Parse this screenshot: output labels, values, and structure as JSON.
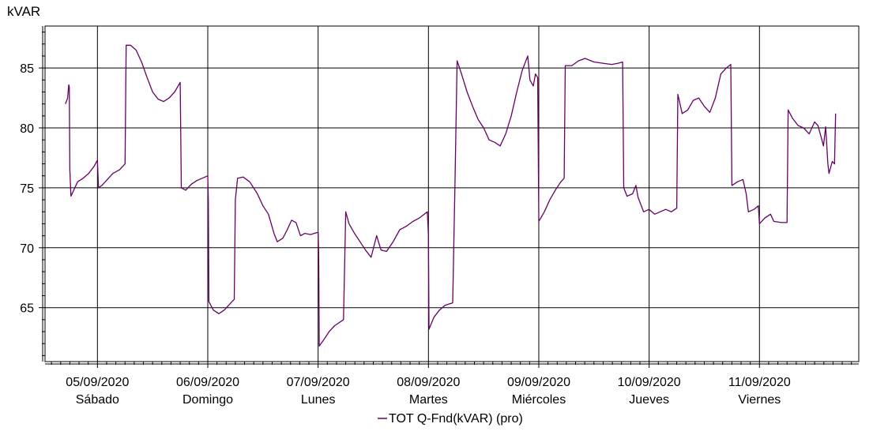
{
  "chart_data": {
    "type": "line",
    "title": "",
    "ylabel": "kVAR",
    "xlabel": "",
    "ylim": [
      60.5,
      88.5
    ],
    "xlim": [
      -0.475,
      6.9
    ],
    "y_ticks": [
      65,
      70,
      75,
      80,
      85
    ],
    "x_ticks": [
      {
        "x": 0,
        "date": "05/09/2020",
        "day": "Sábado"
      },
      {
        "x": 1,
        "date": "06/09/2020",
        "day": "Domingo"
      },
      {
        "x": 2,
        "date": "07/09/2020",
        "day": "Lunes"
      },
      {
        "x": 3,
        "date": "08/09/2020",
        "day": "Martes"
      },
      {
        "x": 4,
        "date": "09/09/2020",
        "day": "Miércoles"
      },
      {
        "x": 5,
        "date": "10/09/2020",
        "day": "Jueves"
      },
      {
        "x": 6,
        "date": "11/09/2020",
        "day": "Viernes"
      }
    ],
    "grid": true,
    "legend_position": "bottom",
    "series": [
      {
        "name": "TOT Q-Fnd(kVAR) (pro)",
        "color": "#660066",
        "points": [
          [
            -0.29,
            82.0
          ],
          [
            -0.27,
            82.5
          ],
          [
            -0.26,
            83.6
          ],
          [
            -0.255,
            83.4
          ],
          [
            -0.25,
            76.5
          ],
          [
            -0.24,
            74.3
          ],
          [
            -0.22,
            74.7
          ],
          [
            -0.18,
            75.5
          ],
          [
            -0.13,
            75.8
          ],
          [
            -0.08,
            76.2
          ],
          [
            -0.03,
            76.8
          ],
          [
            0.0,
            77.3
          ],
          [
            0.01,
            75.0
          ],
          [
            0.04,
            75.2
          ],
          [
            0.08,
            75.6
          ],
          [
            0.14,
            76.2
          ],
          [
            0.2,
            76.5
          ],
          [
            0.25,
            77.0
          ],
          [
            0.26,
            86.9
          ],
          [
            0.3,
            86.9
          ],
          [
            0.35,
            86.5
          ],
          [
            0.4,
            85.5
          ],
          [
            0.45,
            84.2
          ],
          [
            0.5,
            83.0
          ],
          [
            0.55,
            82.4
          ],
          [
            0.6,
            82.2
          ],
          [
            0.65,
            82.5
          ],
          [
            0.7,
            83.0
          ],
          [
            0.75,
            83.8
          ],
          [
            0.76,
            75.0
          ],
          [
            0.8,
            74.8
          ],
          [
            0.85,
            75.3
          ],
          [
            0.9,
            75.6
          ],
          [
            0.95,
            75.8
          ],
          [
            1.0,
            76.0
          ],
          [
            1.005,
            74.0
          ],
          [
            1.01,
            65.5
          ],
          [
            1.05,
            64.8
          ],
          [
            1.1,
            64.5
          ],
          [
            1.15,
            64.8
          ],
          [
            1.2,
            65.3
          ],
          [
            1.24,
            65.7
          ],
          [
            1.25,
            74.0
          ],
          [
            1.27,
            75.8
          ],
          [
            1.32,
            75.9
          ],
          [
            1.38,
            75.5
          ],
          [
            1.45,
            74.5
          ],
          [
            1.5,
            73.5
          ],
          [
            1.55,
            72.8
          ],
          [
            1.6,
            71.2
          ],
          [
            1.63,
            70.5
          ],
          [
            1.68,
            70.8
          ],
          [
            1.72,
            71.5
          ],
          [
            1.76,
            72.3
          ],
          [
            1.8,
            72.1
          ],
          [
            1.84,
            71.0
          ],
          [
            1.88,
            71.2
          ],
          [
            1.93,
            71.1
          ],
          [
            2.0,
            71.3
          ],
          [
            2.005,
            69.5
          ],
          [
            2.01,
            61.8
          ],
          [
            2.05,
            62.3
          ],
          [
            2.1,
            63.0
          ],
          [
            2.15,
            63.5
          ],
          [
            2.23,
            64.0
          ],
          [
            2.25,
            73.0
          ],
          [
            2.28,
            72.0
          ],
          [
            2.33,
            71.2
          ],
          [
            2.38,
            70.5
          ],
          [
            2.43,
            69.8
          ],
          [
            2.48,
            69.2
          ],
          [
            2.53,
            71.0
          ],
          [
            2.57,
            69.8
          ],
          [
            2.62,
            69.7
          ],
          [
            2.68,
            70.5
          ],
          [
            2.74,
            71.5
          ],
          [
            2.8,
            71.8
          ],
          [
            2.86,
            72.2
          ],
          [
            2.92,
            72.5
          ],
          [
            2.99,
            73.0
          ],
          [
            3.0,
            71.0
          ],
          [
            3.005,
            63.2
          ],
          [
            3.05,
            64.2
          ],
          [
            3.1,
            64.8
          ],
          [
            3.15,
            65.2
          ],
          [
            3.22,
            65.4
          ],
          [
            3.24,
            75.0
          ],
          [
            3.26,
            85.6
          ],
          [
            3.3,
            84.5
          ],
          [
            3.35,
            83.0
          ],
          [
            3.4,
            81.8
          ],
          [
            3.45,
            80.7
          ],
          [
            3.5,
            80.0
          ],
          [
            3.55,
            79.0
          ],
          [
            3.6,
            78.8
          ],
          [
            3.65,
            78.5
          ],
          [
            3.7,
            79.5
          ],
          [
            3.75,
            81.0
          ],
          [
            3.8,
            83.0
          ],
          [
            3.85,
            84.8
          ],
          [
            3.9,
            86.0
          ],
          [
            3.92,
            84.0
          ],
          [
            3.95,
            83.5
          ],
          [
            3.97,
            84.5
          ],
          [
            3.99,
            84.2
          ],
          [
            4.0,
            72.2
          ],
          [
            4.05,
            73.0
          ],
          [
            4.1,
            74.0
          ],
          [
            4.15,
            74.8
          ],
          [
            4.2,
            75.5
          ],
          [
            4.23,
            75.8
          ],
          [
            4.24,
            85.2
          ],
          [
            4.3,
            85.2
          ],
          [
            4.36,
            85.6
          ],
          [
            4.42,
            85.8
          ],
          [
            4.5,
            85.5
          ],
          [
            4.58,
            85.4
          ],
          [
            4.66,
            85.3
          ],
          [
            4.72,
            85.4
          ],
          [
            4.76,
            85.5
          ],
          [
            4.77,
            75.0
          ],
          [
            4.8,
            74.3
          ],
          [
            4.85,
            74.5
          ],
          [
            4.88,
            75.2
          ],
          [
            4.9,
            74.2
          ],
          [
            4.95,
            73.0
          ],
          [
            5.0,
            73.2
          ],
          [
            5.05,
            72.8
          ],
          [
            5.1,
            73.0
          ],
          [
            5.15,
            73.2
          ],
          [
            5.2,
            73.0
          ],
          [
            5.25,
            73.3
          ],
          [
            5.26,
            82.8
          ],
          [
            5.3,
            81.2
          ],
          [
            5.35,
            81.5
          ],
          [
            5.4,
            82.3
          ],
          [
            5.45,
            82.5
          ],
          [
            5.5,
            81.8
          ],
          [
            5.55,
            81.3
          ],
          [
            5.6,
            82.5
          ],
          [
            5.65,
            84.5
          ],
          [
            5.7,
            85.0
          ],
          [
            5.74,
            85.3
          ],
          [
            5.75,
            75.2
          ],
          [
            5.8,
            75.5
          ],
          [
            5.85,
            75.7
          ],
          [
            5.88,
            74.5
          ],
          [
            5.9,
            73.0
          ],
          [
            5.95,
            73.2
          ],
          [
            5.99,
            73.5
          ],
          [
            6.0,
            72.0
          ],
          [
            6.05,
            72.5
          ],
          [
            6.1,
            72.8
          ],
          [
            6.13,
            72.2
          ],
          [
            6.2,
            72.1
          ],
          [
            6.25,
            72.1
          ],
          [
            6.26,
            81.5
          ],
          [
            6.3,
            80.8
          ],
          [
            6.35,
            80.2
          ],
          [
            6.4,
            80.0
          ],
          [
            6.45,
            79.5
          ],
          [
            6.5,
            80.5
          ],
          [
            6.53,
            80.2
          ],
          [
            6.56,
            79.2
          ],
          [
            6.58,
            78.5
          ],
          [
            6.6,
            80.1
          ],
          [
            6.62,
            77.0
          ],
          [
            6.63,
            76.2
          ],
          [
            6.66,
            77.2
          ],
          [
            6.68,
            77.0
          ],
          [
            6.69,
            81.2
          ]
        ]
      }
    ]
  }
}
